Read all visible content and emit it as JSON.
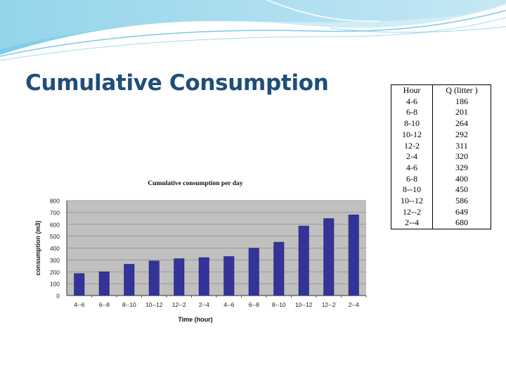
{
  "slide": {
    "title": "Cumulative Consumption"
  },
  "table": {
    "headers": [
      "Hour",
      "Q (litter )"
    ],
    "rows": [
      [
        "4-6",
        "186"
      ],
      [
        "6-8",
        "201"
      ],
      [
        "8-10",
        "264"
      ],
      [
        "10-12",
        "292"
      ],
      [
        "12-2",
        "311"
      ],
      [
        "2-4",
        "320"
      ],
      [
        "4-6",
        "329"
      ],
      [
        "6-8",
        "400"
      ],
      [
        "8--10",
        "450"
      ],
      [
        "10--12",
        "586"
      ],
      [
        "12--2",
        "649"
      ],
      [
        "2--4",
        "680"
      ]
    ]
  },
  "colors": {
    "title": "#1f4e79",
    "plot_area": "#c0c0c0",
    "bar": "#333399",
    "header_wave": "#5bbde0"
  },
  "chart_data": {
    "type": "bar",
    "title": "Cumulative consumption per day",
    "xlabel": "Time (hour)",
    "ylabel": "consumption (m3)",
    "categories": [
      "4--6",
      "6--8",
      "8--10",
      "10--12",
      "12--2",
      "2--4",
      "4--6",
      "6--8",
      "8--10",
      "10--12",
      "12--2",
      "2--4"
    ],
    "values": [
      186,
      201,
      264,
      292,
      311,
      320,
      329,
      400,
      450,
      586,
      649,
      680
    ],
    "ylim": [
      0,
      800
    ],
    "yticks": [
      0,
      100,
      200,
      300,
      400,
      500,
      600,
      700,
      800
    ],
    "grid": true,
    "legend": "none"
  }
}
